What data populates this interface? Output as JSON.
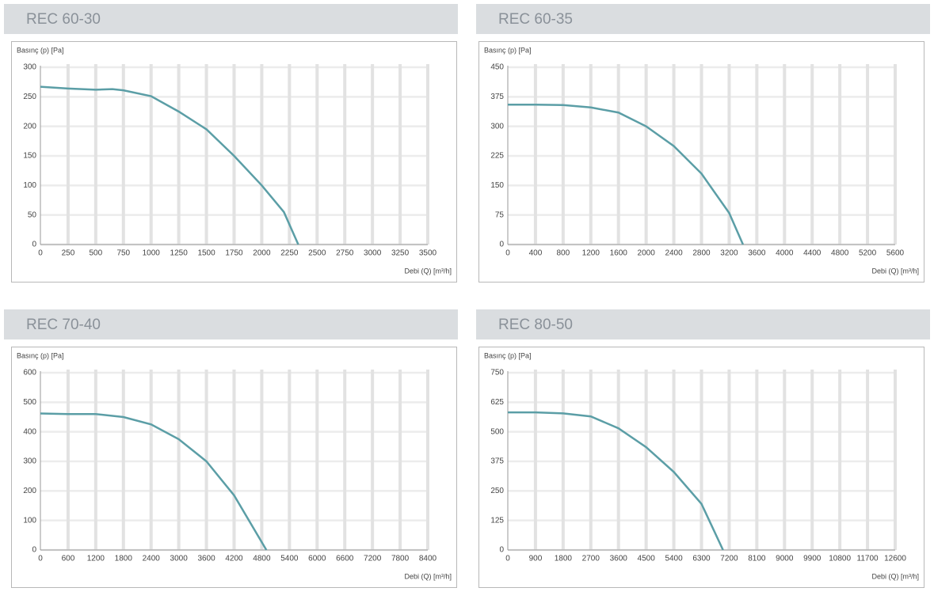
{
  "chart_data": [
    {
      "type": "line",
      "title": "REC 60-30",
      "y_label": "Basınç (p) [Pa]",
      "x_label": "Debi (Q) [m³/h]",
      "color": "#5b9ea6",
      "x": [
        0,
        250,
        500,
        650,
        750,
        1000,
        1250,
        1500,
        1750,
        2000,
        2200,
        2330
      ],
      "values": [
        267,
        264,
        262,
        263,
        261,
        251,
        225,
        195,
        150,
        100,
        55,
        0
      ],
      "xlim": [
        0,
        3500
      ],
      "ylim": [
        0,
        300
      ],
      "xticks": [
        0,
        250,
        500,
        750,
        1000,
        1250,
        1500,
        1750,
        2000,
        2250,
        2500,
        2750,
        3000,
        3250,
        3500
      ],
      "yticks": [
        0,
        50,
        100,
        150,
        200,
        250,
        300
      ],
      "grid": true
    },
    {
      "type": "line",
      "title": "REC 60-35",
      "y_label": "Basınç (p) [Pa]",
      "x_label": "Debi (Q) [m³/h]",
      "color": "#5b9ea6",
      "x": [
        0,
        400,
        800,
        1200,
        1600,
        2000,
        2400,
        2800,
        3200,
        3400
      ],
      "values": [
        355,
        355,
        354,
        348,
        335,
        300,
        250,
        180,
        80,
        0
      ],
      "xlim": [
        0,
        5600
      ],
      "ylim": [
        0,
        450
      ],
      "xticks": [
        0,
        400,
        800,
        1200,
        1600,
        2000,
        2400,
        2800,
        3200,
        3600,
        4000,
        4400,
        4800,
        5200,
        5600
      ],
      "yticks": [
        0,
        75,
        150,
        225,
        300,
        375,
        450
      ],
      "grid": true
    },
    {
      "type": "line",
      "title": "REC 70-40",
      "y_label": "Basınç (p) [Pa]",
      "x_label": "Debi (Q) [m³/h]",
      "color": "#5b9ea6",
      "x": [
        0,
        600,
        1200,
        1800,
        2400,
        3000,
        3600,
        4200,
        4900
      ],
      "values": [
        462,
        460,
        460,
        450,
        425,
        375,
        300,
        185,
        0
      ],
      "xlim": [
        0,
        8400
      ],
      "ylim": [
        0,
        600
      ],
      "xticks": [
        0,
        600,
        1200,
        1800,
        2400,
        3000,
        3600,
        4200,
        4800,
        5400,
        6000,
        6600,
        7200,
        7800,
        8400
      ],
      "yticks": [
        0,
        100,
        200,
        300,
        400,
        500,
        600
      ],
      "grid": true
    },
    {
      "type": "line",
      "title": "REC 80-50",
      "y_label": "Basınç (p) [Pa]",
      "x_label": "Debi (Q) [m³/h]",
      "color": "#5b9ea6",
      "x": [
        0,
        900,
        1800,
        2700,
        3600,
        4500,
        5400,
        6300,
        7000
      ],
      "values": [
        582,
        582,
        578,
        565,
        515,
        435,
        330,
        195,
        0
      ],
      "xlim": [
        0,
        12600
      ],
      "ylim": [
        0,
        750
      ],
      "xticks": [
        0,
        900,
        1800,
        2700,
        3600,
        4500,
        5400,
        6300,
        7200,
        8100,
        9000,
        9900,
        10800,
        11700,
        12600
      ],
      "yticks": [
        0,
        125,
        250,
        375,
        500,
        625,
        750
      ],
      "grid": true
    }
  ]
}
